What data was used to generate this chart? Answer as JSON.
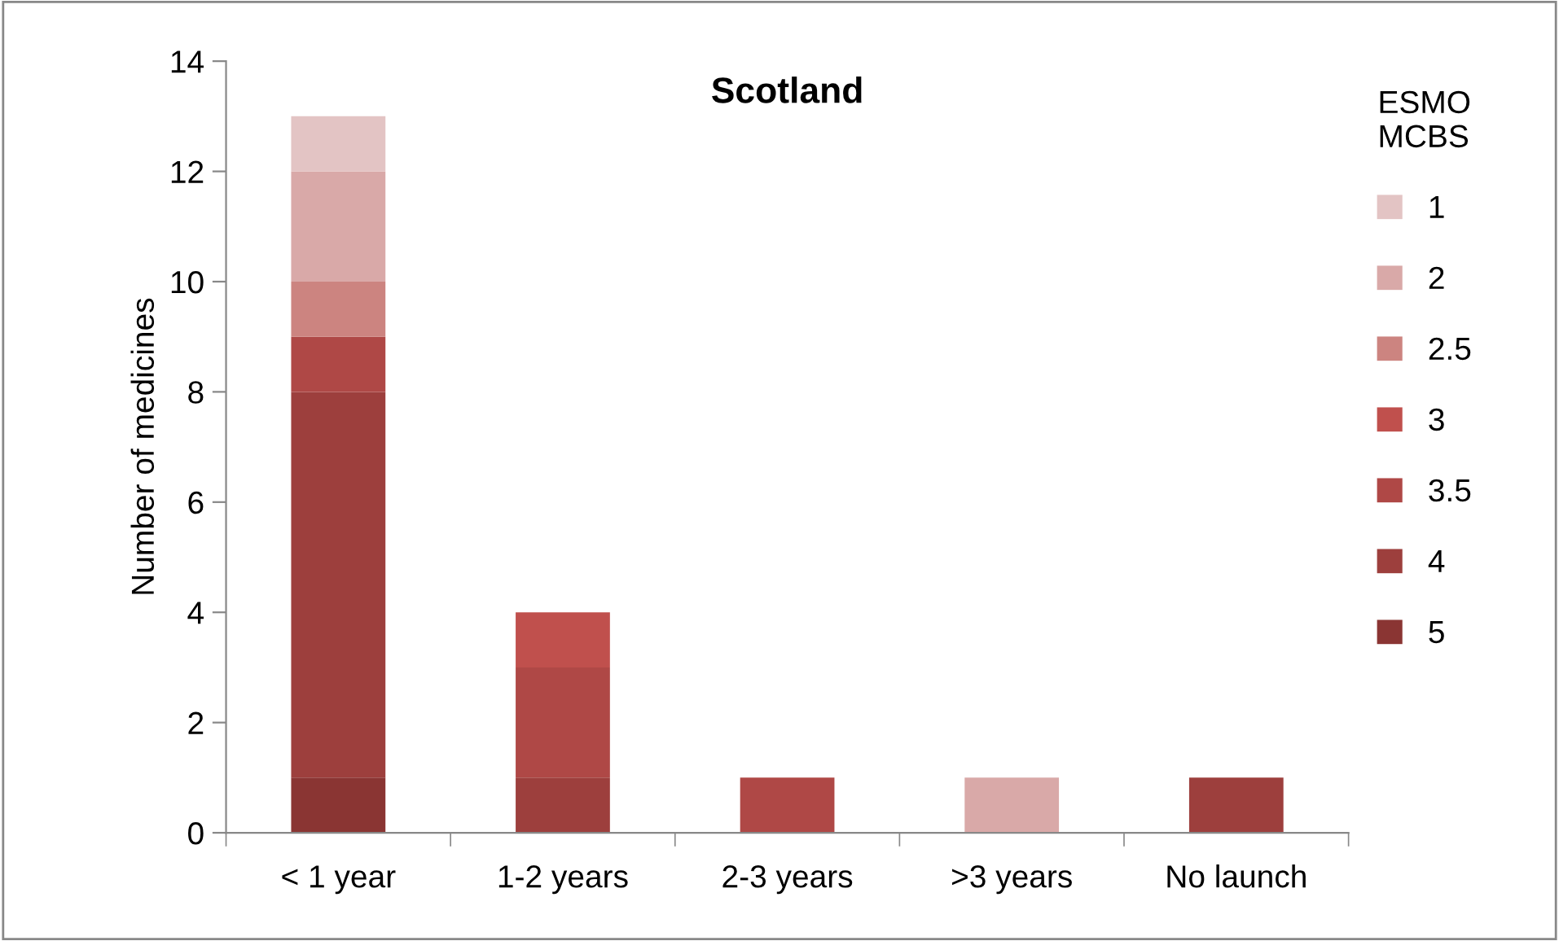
{
  "chart_data": {
    "type": "bar",
    "title": "Scotland",
    "ylabel": "Number of medicines",
    "legend_title": "ESMO\nMCBS",
    "categories": [
      "< 1 year",
      "1-2 years",
      "2-3 years",
      ">3 years",
      "No launch"
    ],
    "stacked": true,
    "legend": "right",
    "grid": false,
    "ylim": [
      0,
      14
    ],
    "yticks": [
      0,
      2,
      4,
      6,
      8,
      10,
      12,
      14
    ],
    "series": [
      {
        "name": "5",
        "color": "#8a3533",
        "values": [
          1,
          0,
          0,
          0,
          0
        ]
      },
      {
        "name": "4",
        "color": "#9d3f3d",
        "values": [
          7,
          1,
          0,
          0,
          1
        ]
      },
      {
        "name": "3.5",
        "color": "#af4846",
        "values": [
          1,
          2,
          1,
          0,
          0
        ]
      },
      {
        "name": "3",
        "color": "#c0504d",
        "values": [
          0,
          1,
          0,
          0,
          0
        ]
      },
      {
        "name": "2.5",
        "color": "#cc8480",
        "values": [
          1,
          0,
          0,
          0,
          0
        ]
      },
      {
        "name": "2",
        "color": "#d9a9a8",
        "values": [
          2,
          0,
          0,
          1,
          0
        ]
      },
      {
        "name": "1",
        "color": "#e3c4c4",
        "values": [
          1,
          0,
          0,
          0,
          0
        ]
      }
    ]
  }
}
